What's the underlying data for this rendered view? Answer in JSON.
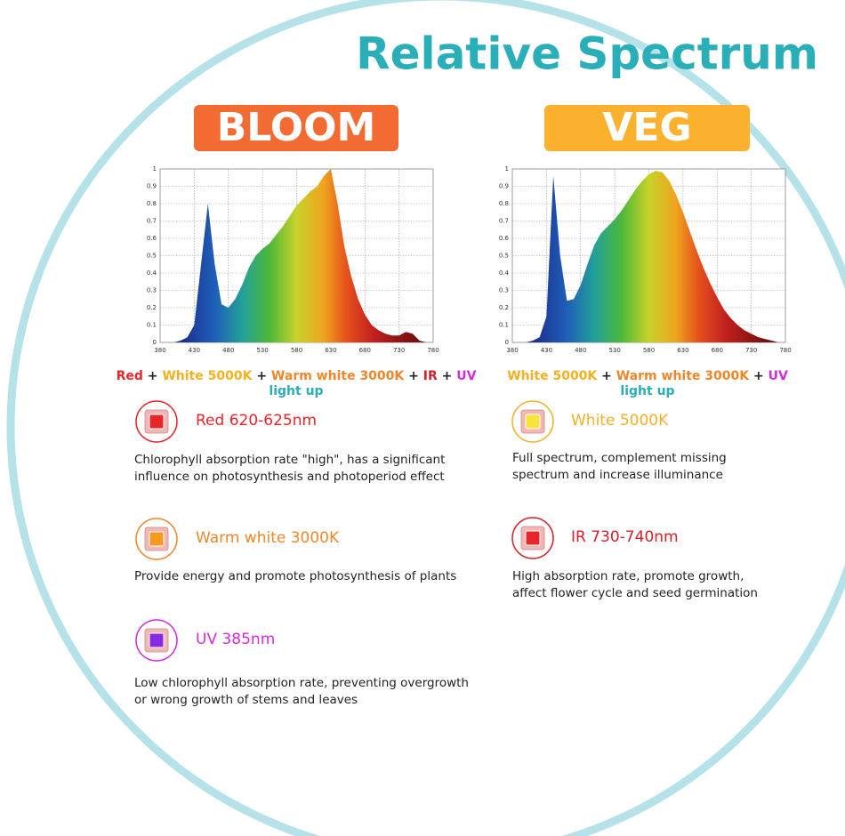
{
  "header": {
    "title": "Relative Spectrum"
  },
  "chart_data": [
    {
      "type": "area",
      "x": [
        380,
        390,
        400,
        410,
        420,
        430,
        440,
        450,
        460,
        470,
        480,
        490,
        500,
        510,
        520,
        530,
        540,
        550,
        560,
        570,
        580,
        590,
        600,
        610,
        620,
        630,
        640,
        650,
        660,
        670,
        680,
        690,
        700,
        710,
        720,
        730,
        740,
        750,
        760,
        770,
        780
      ],
      "values": [
        0,
        0,
        0,
        0.01,
        0.03,
        0.1,
        0.45,
        0.8,
        0.45,
        0.22,
        0.2,
        0.25,
        0.33,
        0.43,
        0.5,
        0.54,
        0.57,
        0.62,
        0.67,
        0.73,
        0.79,
        0.83,
        0.87,
        0.9,
        0.96,
        1.0,
        0.8,
        0.55,
        0.38,
        0.25,
        0.16,
        0.1,
        0.07,
        0.05,
        0.04,
        0.04,
        0.06,
        0.05,
        0.01,
        0,
        0
      ],
      "xlim": [
        380,
        780
      ],
      "ylim": [
        0,
        1
      ],
      "xticks": [
        380,
        430,
        480,
        530,
        580,
        630,
        680,
        730,
        780
      ],
      "yticks": [
        0,
        0.1,
        0.2,
        0.3,
        0.4,
        0.5,
        0.6,
        0.7,
        0.8,
        0.9,
        1
      ],
      "grid": true
    },
    {
      "type": "area",
      "x": [
        380,
        390,
        400,
        410,
        420,
        430,
        440,
        450,
        460,
        470,
        480,
        490,
        500,
        510,
        520,
        530,
        540,
        550,
        560,
        570,
        580,
        590,
        600,
        610,
        620,
        630,
        640,
        650,
        660,
        670,
        680,
        690,
        700,
        710,
        720,
        730,
        740,
        750,
        760,
        770,
        780
      ],
      "values": [
        0,
        0,
        0,
        0.01,
        0.03,
        0.15,
        0.96,
        0.5,
        0.24,
        0.25,
        0.33,
        0.45,
        0.56,
        0.63,
        0.67,
        0.71,
        0.76,
        0.82,
        0.88,
        0.93,
        0.97,
        0.99,
        0.98,
        0.93,
        0.85,
        0.75,
        0.64,
        0.53,
        0.43,
        0.34,
        0.26,
        0.19,
        0.14,
        0.1,
        0.07,
        0.05,
        0.03,
        0.02,
        0.01,
        0,
        0
      ],
      "xlim": [
        380,
        780
      ],
      "ylim": [
        0,
        1
      ],
      "xticks": [
        380,
        430,
        480,
        530,
        580,
        630,
        680,
        730,
        780
      ],
      "yticks": [
        0,
        0.1,
        0.2,
        0.3,
        0.4,
        0.5,
        0.6,
        0.7,
        0.8,
        0.9,
        1
      ],
      "grid": true
    }
  ],
  "panels": [
    {
      "badge": "BLOOM",
      "badge_color": "#f26b32",
      "composition": {
        "separator": "+",
        "suffix": "light up",
        "suffix_color": "#2aaeb8",
        "parts": [
          {
            "text": "Red",
            "color": "#e8262a"
          },
          {
            "text": "White 5000K",
            "color": "#f5b01e"
          },
          {
            "text": "Warm white 3000K",
            "color": "#f0862a"
          },
          {
            "text": "IR",
            "color": "#d8202a"
          },
          {
            "text": "UV",
            "color": "#d62adb"
          }
        ]
      },
      "items": [
        {
          "title": "Red 620-625nm",
          "color": "#e8262a",
          "led": "#e8262a",
          "description": "Chlorophyll absorption rate \"high\", has a significant influence on photosynthesis and photoperiod effect"
        },
        {
          "title": "Warm white 3000K",
          "color": "#f0862a",
          "led": "#f59a1e",
          "description": "Provide energy and promote photosynthesis of plants"
        },
        {
          "title": "UV 385nm",
          "color": "#d62adb",
          "led": "#8a2ae0",
          "description": "Low chlorophyll absorption rate, preventing overgrowth or wrong growth of stems and leaves"
        }
      ]
    },
    {
      "badge": "VEG",
      "badge_color": "#fbb12e",
      "composition": {
        "separator": "+",
        "suffix": "light up",
        "suffix_color": "#2aaeb8",
        "parts": [
          {
            "text": "White 5000K",
            "color": "#f5b01e"
          },
          {
            "text": "Warm white 3000K",
            "color": "#f0862a"
          },
          {
            "text": "UV",
            "color": "#d62adb"
          }
        ]
      },
      "items": [
        {
          "title": "White 5000K",
          "color": "#f2b12a",
          "led": "#f7e43a",
          "description": "Full spectrum, complement missing spectrum and increase illuminance"
        },
        {
          "title": "IR 730-740nm",
          "color": "#d8202a",
          "led": "#e8262a",
          "description": "High absorption rate, promote growth, affect flower cycle and seed germination"
        }
      ]
    }
  ]
}
